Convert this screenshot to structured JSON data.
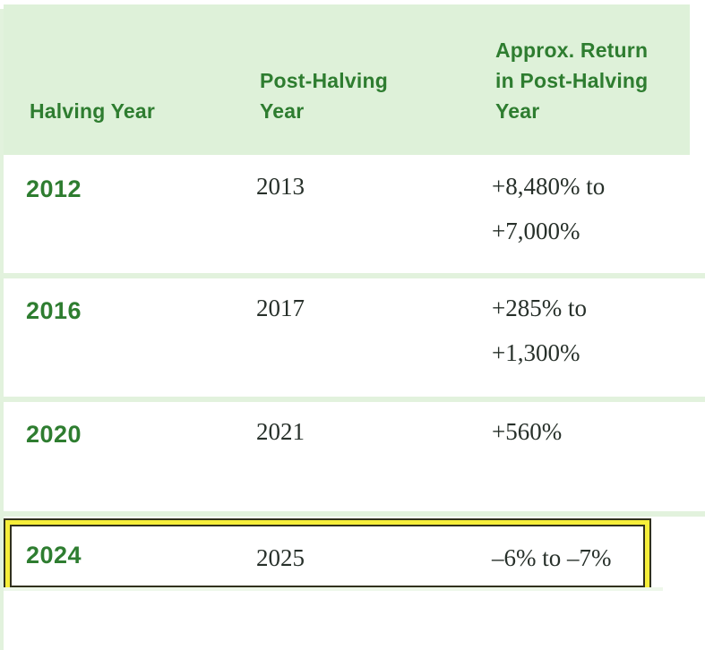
{
  "colors": {
    "header_background": "#def1d9",
    "heading_text_green": "#2e7d30",
    "body_text_ink": "#27302a",
    "separator_green": "#e2f2dd",
    "highlight_yellow": "#f6ee3a",
    "highlight_outline": "#31311d"
  },
  "table": {
    "columns": [
      {
        "label": "Halving Year"
      },
      {
        "label": "Post-Halving\nYear"
      },
      {
        "label": "Approx. Return\nin Post-Halving\nYear"
      }
    ],
    "rows": [
      {
        "halving_year": "2012",
        "post_halving_year": "2013",
        "approx_return": "+8,480% to\n+7,000%",
        "highlighted": false
      },
      {
        "halving_year": "2016",
        "post_halving_year": "2017",
        "approx_return": "+285% to\n+1,300%",
        "highlighted": false
      },
      {
        "halving_year": "2020",
        "post_halving_year": "2021",
        "approx_return": "+560%",
        "highlighted": false
      },
      {
        "halving_year": "2024",
        "post_halving_year": "2025",
        "approx_return": "–6% to –7%",
        "highlighted": true
      }
    ]
  }
}
